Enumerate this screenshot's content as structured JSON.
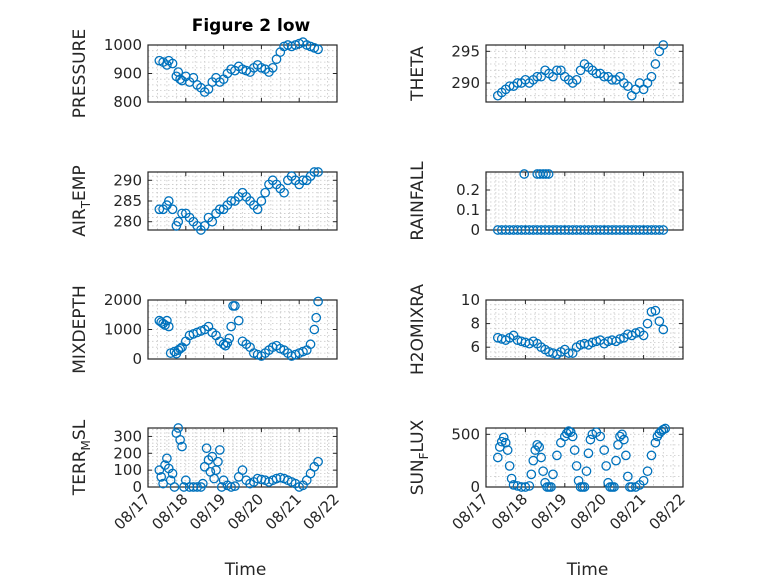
{
  "figure": {
    "title": "Figure 2 low",
    "marker_color": "#0072BD"
  },
  "chart_data": [
    {
      "type": "scatter",
      "ylabel": "PRESSURE",
      "xlabel": "",
      "ylim": [
        800,
        1000
      ],
      "yticks": [
        800,
        900,
        1000
      ],
      "ytick_labels": [
        "800",
        "900",
        "1000"
      ],
      "xlim": [
        17,
        22
      ],
      "xticks_shown": false,
      "grid": true,
      "x": [
        17.3,
        17.4,
        17.5,
        17.55,
        17.65,
        17.75,
        17.8,
        17.85,
        17.9,
        18.0,
        18.1,
        18.2,
        18.3,
        18.4,
        18.5,
        18.6,
        18.7,
        18.8,
        18.9,
        19.0,
        19.1,
        19.2,
        19.3,
        19.4,
        19.5,
        19.6,
        19.7,
        19.8,
        19.9,
        20.0,
        20.1,
        20.2,
        20.3,
        20.4,
        20.5,
        20.6,
        20.7,
        20.8,
        20.9,
        21.0,
        21.1,
        21.2,
        21.3,
        21.4,
        21.5
      ],
      "y": [
        945,
        940,
        930,
        945,
        935,
        890,
        905,
        880,
        875,
        890,
        870,
        885,
        860,
        850,
        835,
        845,
        870,
        885,
        870,
        880,
        900,
        915,
        910,
        925,
        915,
        910,
        905,
        920,
        930,
        920,
        915,
        905,
        920,
        950,
        975,
        995,
        1000,
        995,
        1000,
        1005,
        1010,
        1000,
        995,
        990,
        985
      ]
    },
    {
      "type": "scatter",
      "ylabel": "THETA",
      "xlabel": "",
      "ylim": [
        287,
        296
      ],
      "yticks": [
        290,
        295
      ],
      "ytick_labels": [
        "290",
        "295"
      ],
      "xlim": [
        17,
        22
      ],
      "xticks_shown": false,
      "grid": true,
      "x": [
        17.3,
        17.4,
        17.5,
        17.6,
        17.7,
        17.8,
        17.9,
        18.0,
        18.1,
        18.2,
        18.3,
        18.4,
        18.5,
        18.6,
        18.7,
        18.8,
        18.9,
        19.0,
        19.1,
        19.2,
        19.3,
        19.4,
        19.5,
        19.6,
        19.7,
        19.8,
        19.9,
        20.0,
        20.1,
        20.2,
        20.3,
        20.4,
        20.5,
        20.6,
        20.7,
        20.8,
        20.9,
        21.0,
        21.1,
        21.2,
        21.3,
        21.4,
        21.5
      ],
      "y": [
        288,
        288.5,
        289,
        289.5,
        289.5,
        290,
        290,
        290.5,
        290,
        290.5,
        291,
        291,
        292,
        291.5,
        291,
        292,
        292,
        291,
        290.5,
        290,
        290.5,
        292,
        293,
        292.5,
        292,
        291.5,
        291.5,
        291,
        291,
        290.5,
        290.5,
        291,
        290,
        289.5,
        288,
        289,
        290,
        289,
        290,
        291,
        293,
        295,
        296
      ]
    },
    {
      "type": "scatter",
      "ylabel": "AIR_TEMP",
      "xlabel": "",
      "ylim": [
        278,
        292
      ],
      "yticks": [
        280,
        285,
        290
      ],
      "ytick_labels": [
        "280",
        "285",
        "290"
      ],
      "xlim": [
        17,
        22
      ],
      "xticks_shown": false,
      "grid": true,
      "x": [
        17.3,
        17.4,
        17.5,
        17.55,
        17.65,
        17.75,
        17.8,
        17.9,
        18.0,
        18.1,
        18.2,
        18.3,
        18.4,
        18.5,
        18.6,
        18.7,
        18.8,
        18.9,
        19.0,
        19.1,
        19.2,
        19.3,
        19.4,
        19.5,
        19.6,
        19.7,
        19.8,
        19.9,
        20.0,
        20.1,
        20.2,
        20.3,
        20.4,
        20.5,
        20.6,
        20.7,
        20.8,
        20.9,
        21.0,
        21.1,
        21.2,
        21.3,
        21.4,
        21.5
      ],
      "y": [
        283,
        283,
        284,
        285,
        283,
        279,
        280,
        282,
        282,
        281,
        280,
        279,
        278,
        279,
        281,
        280,
        282,
        283,
        283,
        284,
        285,
        285,
        286,
        287,
        286,
        285,
        284,
        283,
        285,
        287,
        289,
        290,
        289,
        288,
        287,
        290,
        291,
        290,
        289,
        290,
        290,
        291,
        292,
        292
      ]
    },
    {
      "type": "scatter",
      "ylabel": "RAINFALL",
      "xlabel": "",
      "ylim": [
        0,
        0.29
      ],
      "yticks": [
        0,
        0.1,
        0.2
      ],
      "ytick_labels": [
        "0",
        "0.1",
        "0.2"
      ],
      "xlim": [
        17,
        22
      ],
      "xticks_shown": false,
      "grid": true,
      "x": [
        17.3,
        17.4,
        17.5,
        17.6,
        17.7,
        17.8,
        17.9,
        18.0,
        18.1,
        18.2,
        18.3,
        18.4,
        18.5,
        18.6,
        18.7,
        18.8,
        18.9,
        19.0,
        19.1,
        19.2,
        19.3,
        19.4,
        19.5,
        19.6,
        19.7,
        19.8,
        19.9,
        20.0,
        20.1,
        20.2,
        20.3,
        20.4,
        20.5,
        20.6,
        20.7,
        20.8,
        20.9,
        21.0,
        21.1,
        21.2,
        21.3,
        21.4,
        21.5,
        17.97,
        18.3,
        18.37,
        18.45,
        18.52,
        18.59
      ],
      "y": [
        0,
        0,
        0,
        0,
        0,
        0,
        0,
        0,
        0,
        0,
        0,
        0,
        0,
        0,
        0,
        0,
        0,
        0,
        0,
        0,
        0,
        0,
        0,
        0,
        0,
        0,
        0,
        0,
        0,
        0,
        0,
        0,
        0,
        0,
        0,
        0,
        0,
        0,
        0,
        0,
        0,
        0,
        0,
        0.28,
        0.28,
        0.28,
        0.28,
        0.28,
        0.28
      ]
    },
    {
      "type": "scatter",
      "ylabel": "MIXDEPTH",
      "xlabel": "",
      "ylim": [
        0,
        2000
      ],
      "yticks": [
        0,
        1000,
        2000
      ],
      "ytick_labels": [
        "0",
        "1000",
        "2000"
      ],
      "xlim": [
        17,
        22
      ],
      "xticks_shown": false,
      "grid": true,
      "x": [
        17.3,
        17.35,
        17.4,
        17.45,
        17.5,
        17.55,
        17.6,
        17.7,
        17.75,
        17.8,
        17.85,
        17.9,
        18.0,
        18.1,
        18.2,
        18.3,
        18.4,
        18.5,
        18.6,
        18.7,
        18.8,
        18.9,
        19.0,
        19.05,
        19.1,
        19.15,
        19.2,
        19.25,
        19.3,
        19.4,
        19.5,
        19.6,
        19.7,
        19.8,
        19.9,
        20.0,
        20.1,
        20.2,
        20.3,
        20.4,
        20.5,
        20.6,
        20.7,
        20.8,
        20.9,
        21.0,
        21.1,
        21.2,
        21.3,
        21.4,
        21.45,
        21.5
      ],
      "y": [
        1300,
        1250,
        1200,
        1150,
        1300,
        1100,
        200,
        250,
        180,
        300,
        350,
        400,
        600,
        800,
        850,
        900,
        950,
        1000,
        1100,
        900,
        800,
        600,
        500,
        450,
        550,
        700,
        1100,
        1800,
        1800,
        1300,
        600,
        500,
        400,
        200,
        150,
        100,
        200,
        300,
        400,
        450,
        350,
        300,
        200,
        100,
        150,
        200,
        250,
        300,
        500,
        1000,
        1400,
        1950
      ]
    },
    {
      "type": "scatter",
      "ylabel": "H2OMIXRA",
      "xlabel": "",
      "ylim": [
        5,
        10
      ],
      "yticks": [
        6,
        8,
        10
      ],
      "ytick_labels": [
        "6",
        "8",
        "10"
      ],
      "xlim": [
        17,
        22
      ],
      "xticks_shown": false,
      "grid": true,
      "x": [
        17.3,
        17.4,
        17.5,
        17.6,
        17.7,
        17.8,
        17.9,
        18.0,
        18.1,
        18.2,
        18.3,
        18.4,
        18.5,
        18.6,
        18.7,
        18.8,
        18.9,
        19.0,
        19.1,
        19.2,
        19.3,
        19.4,
        19.5,
        19.6,
        19.7,
        19.8,
        19.9,
        20.0,
        20.1,
        20.2,
        20.3,
        20.4,
        20.5,
        20.6,
        20.7,
        20.8,
        20.9,
        21.0,
        21.1,
        21.2,
        21.3,
        21.4,
        21.5
      ],
      "y": [
        6.8,
        6.7,
        6.6,
        6.8,
        7,
        6.6,
        6.5,
        6.4,
        6.3,
        6.5,
        6.3,
        6,
        5.8,
        5.6,
        5.5,
        5.4,
        5.6,
        5.8,
        5.5,
        5.5,
        6,
        6.2,
        6.3,
        6.2,
        6.4,
        6.5,
        6.6,
        6.3,
        6.5,
        6.6,
        6.5,
        6.7,
        6.8,
        7.1,
        7,
        7.2,
        7.3,
        7,
        8,
        9,
        9.1,
        8.2,
        7.5
      ]
    },
    {
      "type": "scatter",
      "ylabel": "TERR_MSL",
      "xlabel": "Time",
      "ylim": [
        0,
        350
      ],
      "yticks": [
        0,
        100,
        200,
        300
      ],
      "ytick_labels": [
        "0",
        "100",
        "200",
        "300"
      ],
      "xlim": [
        17,
        22
      ],
      "xticks": [
        17,
        18,
        19,
        20,
        21,
        22
      ],
      "xtick_labels": [
        "08/17",
        "08/18",
        "08/19",
        "08/20",
        "08/21",
        "08/22"
      ],
      "grid": true,
      "x": [
        17.3,
        17.35,
        17.4,
        17.45,
        17.5,
        17.55,
        17.6,
        17.65,
        17.7,
        17.75,
        17.8,
        17.85,
        17.9,
        17.95,
        18.0,
        18.1,
        18.2,
        18.3,
        18.4,
        18.45,
        18.5,
        18.55,
        18.6,
        18.65,
        18.7,
        18.75,
        18.8,
        18.85,
        18.9,
        18.95,
        19.0,
        19.1,
        19.2,
        19.3,
        19.4,
        19.5,
        19.6,
        19.7,
        19.8,
        19.9,
        20.0,
        20.1,
        20.2,
        20.3,
        20.4,
        20.5,
        20.6,
        20.7,
        20.8,
        20.9,
        21.0,
        21.1,
        21.2,
        21.3,
        21.4,
        21.5
      ],
      "y": [
        100,
        60,
        20,
        130,
        170,
        110,
        40,
        80,
        0,
        320,
        350,
        280,
        240,
        0,
        40,
        0,
        0,
        0,
        0,
        20,
        120,
        230,
        160,
        90,
        180,
        50,
        100,
        150,
        220,
        0,
        40,
        10,
        0,
        5,
        60,
        100,
        40,
        20,
        30,
        50,
        45,
        40,
        30,
        40,
        50,
        55,
        50,
        40,
        30,
        20,
        0,
        10,
        40,
        80,
        120,
        150
      ]
    },
    {
      "type": "scatter",
      "ylabel": "SUN_FLUX",
      "xlabel": "Time",
      "ylim": [
        0,
        560
      ],
      "yticks": [
        0,
        500
      ],
      "ytick_labels": [
        "0",
        "500"
      ],
      "xlim": [
        17,
        22
      ],
      "xticks": [
        17,
        18,
        19,
        20,
        21,
        22
      ],
      "xtick_labels": [
        "08/17",
        "08/18",
        "08/19",
        "08/20",
        "08/21",
        "08/22"
      ],
      "grid": true,
      "x": [
        17.3,
        17.35,
        17.4,
        17.45,
        17.5,
        17.55,
        17.6,
        17.65,
        17.7,
        17.8,
        17.9,
        18.0,
        18.1,
        18.15,
        18.2,
        18.25,
        18.3,
        18.35,
        18.4,
        18.45,
        18.5,
        18.55,
        18.6,
        18.65,
        18.7,
        18.8,
        18.9,
        19.0,
        19.05,
        19.1,
        19.15,
        19.2,
        19.25,
        19.3,
        19.35,
        19.4,
        19.45,
        19.5,
        19.55,
        19.6,
        19.65,
        19.7,
        19.8,
        19.9,
        20.0,
        20.05,
        20.1,
        20.15,
        20.2,
        20.25,
        20.3,
        20.35,
        20.4,
        20.45,
        20.5,
        20.55,
        20.6,
        20.65,
        20.7,
        20.8,
        20.9,
        21.0,
        21.1,
        21.2,
        21.3,
        21.35,
        21.4,
        21.45,
        21.5,
        21.55
      ],
      "y": [
        280,
        380,
        430,
        470,
        420,
        350,
        200,
        80,
        20,
        10,
        0,
        0,
        10,
        120,
        250,
        350,
        400,
        380,
        280,
        150,
        40,
        0,
        0,
        0,
        120,
        300,
        420,
        480,
        510,
        530,
        520,
        480,
        350,
        200,
        60,
        0,
        0,
        0,
        150,
        320,
        450,
        500,
        520,
        480,
        350,
        200,
        40,
        0,
        0,
        0,
        250,
        400,
        480,
        500,
        450,
        300,
        100,
        0,
        0,
        0,
        20,
        60,
        150,
        300,
        420,
        480,
        510,
        530,
        545,
        555
      ]
    }
  ]
}
